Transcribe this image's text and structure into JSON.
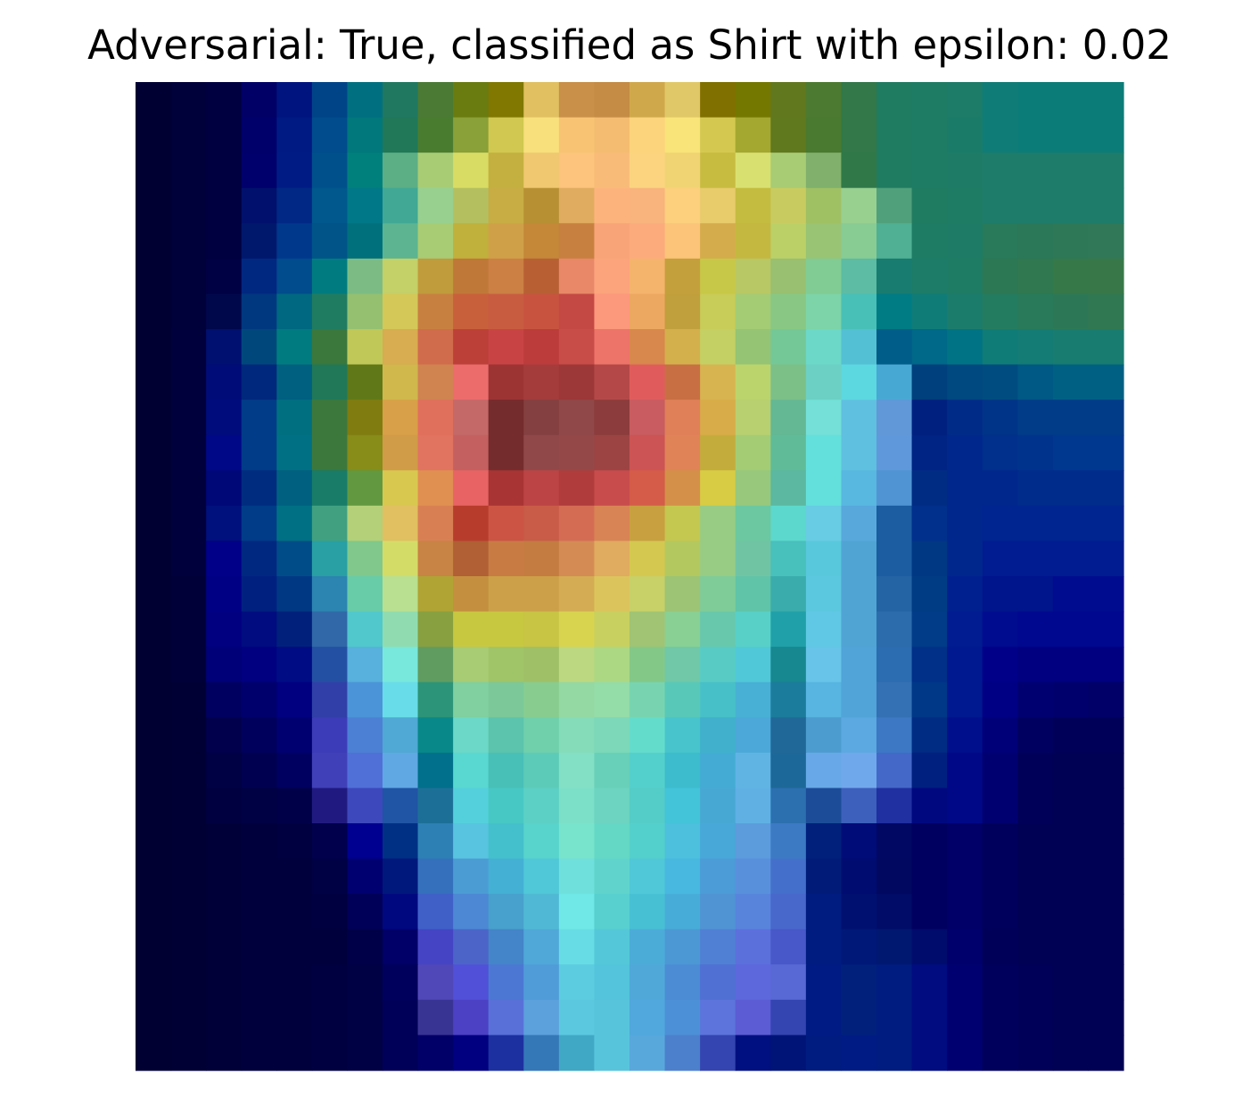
{
  "chart_data": {
    "type": "heatmap",
    "title": "Adversarial: True, classified as Shirt with epsilon: 0.02",
    "rows": 28,
    "cols": 28,
    "axes_visible": false,
    "colors": [
      [
        "#000033",
        "#00003a",
        "#000040",
        "#000066",
        "#001480",
        "#004488",
        "#007080",
        "#207860",
        "#4a7a34",
        "#6a7c10",
        "#807800",
        "#e0c060",
        "#c89048",
        "#c48c44",
        "#d0a84c",
        "#e0c868",
        "#807000",
        "#747800",
        "#62781e",
        "#4c7a30",
        "#327848",
        "#207c60",
        "#1e7c64",
        "#1c7c68",
        "#107c78",
        "#0c7c78",
        "#0c7c78",
        "#0c7c78"
      ],
      [
        "#000033",
        "#00003a",
        "#000040",
        "#00006a",
        "#001a84",
        "#004c8c",
        "#00787c",
        "#207858",
        "#4a7c30",
        "#8aa038",
        "#d0c850",
        "#f8e07c",
        "#f8c474",
        "#f4bc70",
        "#fcd47c",
        "#f8e478",
        "#d4c850",
        "#a4a830",
        "#60781e",
        "#4a7a30",
        "#327848",
        "#207c60",
        "#1e7c64",
        "#1a7c68",
        "#107c78",
        "#0c7c78",
        "#0c7c78",
        "#0c7c78"
      ],
      [
        "#000033",
        "#00003a",
        "#000040",
        "#00006c",
        "#001c84",
        "#00508c",
        "#00807c",
        "#5cae84",
        "#a8cc74",
        "#d8dc64",
        "#c4b040",
        "#f0c870",
        "#fcc47c",
        "#f8bc78",
        "#fcd480",
        "#f0d474",
        "#c8bc40",
        "#d8e070",
        "#a8cc74",
        "#80b06c",
        "#307848",
        "#207c60",
        "#1e7c64",
        "#1e7c66",
        "#1e7c6a",
        "#1e7c6a",
        "#1e7c6a",
        "#1e7c6a"
      ],
      [
        "#000033",
        "#00003a",
        "#000040",
        "#00106c",
        "#002884",
        "#00588c",
        "#007888",
        "#40a894",
        "#98d090",
        "#b4c060",
        "#c8ac44",
        "#b89034",
        "#e0ac60",
        "#fcb47c",
        "#f8b47c",
        "#fcd07c",
        "#e8cc6c",
        "#c4bc40",
        "#c8cc60",
        "#a0c064",
        "#98d090",
        "#50a07c",
        "#207c60",
        "#1e7c64",
        "#1e7c6a",
        "#1e7c6a",
        "#1e7c6a",
        "#1e7c6a"
      ],
      [
        "#000033",
        "#00003a",
        "#000040",
        "#00186c",
        "#00388c",
        "#005488",
        "#00707c",
        "#5cb490",
        "#a8cc74",
        "#c0b03c",
        "#d0a048",
        "#c48838",
        "#c88040",
        "#f8a478",
        "#fcac7c",
        "#fcc478",
        "#d4ac4c",
        "#c4b840",
        "#bcd068",
        "#98c474",
        "#88cc94",
        "#50b094",
        "#1e7c64",
        "#1e7c66",
        "#287a5a",
        "#2a7858",
        "#2e7858",
        "#307858"
      ],
      [
        "#000033",
        "#00003a",
        "#000044",
        "#002880",
        "#004c8c",
        "#007c80",
        "#7cbc84",
        "#c4d068",
        "#c09c3c",
        "#c07838",
        "#cc8044",
        "#b86034",
        "#e88868",
        "#fca47c",
        "#f4b46c",
        "#c4a03c",
        "#c8c848",
        "#b8c864",
        "#98c070",
        "#80cc94",
        "#5cbca4",
        "#187c70",
        "#1c7c68",
        "#1e7c64",
        "#2c7854",
        "#307850",
        "#367848",
        "#387848"
      ],
      [
        "#000033",
        "#00003a",
        "#00084c",
        "#003880",
        "#006880",
        "#207c60",
        "#94c070",
        "#d4c858",
        "#c88040",
        "#c8603c",
        "#c85c40",
        "#c85440",
        "#c44844",
        "#fc987c",
        "#eca860",
        "#c0a03c",
        "#c8cc58",
        "#a4cc74",
        "#88c884",
        "#7cd4a8",
        "#48c0b8",
        "#007c84",
        "#107c78",
        "#1c7c6c",
        "#247c60",
        "#287a5a",
        "#2c7856",
        "#307852"
      ],
      [
        "#000033",
        "#00003c",
        "#001070",
        "#00487c",
        "#007c80",
        "#3a783c",
        "#c0c858",
        "#d8ac50",
        "#d06c4c",
        "#bc4038",
        "#c84444",
        "#bc3c3c",
        "#c84c48",
        "#ec7468",
        "#d8884c",
        "#d4b04c",
        "#c4d064",
        "#94c474",
        "#74c898",
        "#6cd8c8",
        "#54c0d4",
        "#005c88",
        "#006888",
        "#007484",
        "#107c78",
        "#147c74",
        "#187c70",
        "#187c70"
      ],
      [
        "#000033",
        "#00003c",
        "#000c78",
        "#00287c",
        "#006080",
        "#207858",
        "#607818",
        "#d0b84c",
        "#d08450",
        "#ec6c6c",
        "#9c3434",
        "#a43c3c",
        "#9c3838",
        "#b44848",
        "#e05c5c",
        "#c87044",
        "#d8b450",
        "#bcd46c",
        "#7cc088",
        "#6cd0c4",
        "#5cd8e0",
        "#48a8d4",
        "#00407c",
        "#004880",
        "#004c80",
        "#005884",
        "#006084",
        "#006084"
      ],
      [
        "#000033",
        "#00003c",
        "#000c7c",
        "#003c88",
        "#007080",
        "#3c783c",
        "#807c10",
        "#d8a048",
        "#e0705c",
        "#c46868",
        "#742c2c",
        "#844040",
        "#904848",
        "#8c3c3c",
        "#c85c60",
        "#e08058",
        "#d8ac48",
        "#b8d070",
        "#64b894",
        "#74e0d8",
        "#60c0e0",
        "#6098d8",
        "#002080",
        "#002c88",
        "#003488",
        "#003c88",
        "#003c88",
        "#003c88"
      ],
      [
        "#000033",
        "#00003c",
        "#000888",
        "#003c88",
        "#007084",
        "#3c783c",
        "#888c18",
        "#d09c48",
        "#e07460",
        "#c46060",
        "#742c2c",
        "#904848",
        "#944848",
        "#9c4444",
        "#cc5454",
        "#e08458",
        "#c4ac3c",
        "#a4cc74",
        "#60bc98",
        "#64e0dc",
        "#60c0e0",
        "#6098dc",
        "#002484",
        "#00288c",
        "#00308c",
        "#00348c",
        "#003890",
        "#003890"
      ],
      [
        "#000033",
        "#00003c",
        "#000878",
        "#002c80",
        "#006080",
        "#187c68",
        "#629840",
        "#d8c850",
        "#e09050",
        "#e86464",
        "#a83434",
        "#bc4444",
        "#b03c3c",
        "#c84c4c",
        "#d45c48",
        "#d49048",
        "#d8cc44",
        "#98c87c",
        "#5cb8a0",
        "#64e0dc",
        "#58b8e0",
        "#5094d4",
        "#002c84",
        "#00288c",
        "#00288c",
        "#002c8c",
        "#002c8c",
        "#002c8c"
      ],
      [
        "#000033",
        "#00003c",
        "#00107c",
        "#003c88",
        "#007084",
        "#40a080",
        "#b4d078",
        "#e0c060",
        "#d88054",
        "#b83c2c",
        "#cc5444",
        "#c85c48",
        "#d46c54",
        "#d88454",
        "#c8a040",
        "#c4c850",
        "#98cc84",
        "#6cc8a0",
        "#5cd8cc",
        "#68cce4",
        "#58a8dc",
        "#1c5ca0",
        "#00308c",
        "#00288c",
        "#002490",
        "#002490",
        "#002490",
        "#002490"
      ],
      [
        "#000033",
        "#00003c",
        "#000088",
        "#002880",
        "#004c88",
        "#28a0a4",
        "#80c88c",
        "#d4dc68",
        "#c88444",
        "#b06034",
        "#c87c44",
        "#c47c40",
        "#d48c54",
        "#e0ac60",
        "#d4c850",
        "#b4c860",
        "#98cc84",
        "#70c4a4",
        "#48c0bc",
        "#58c8dc",
        "#50a4d4",
        "#1c5ca0",
        "#003884",
        "#00288c",
        "#001c90",
        "#001c90",
        "#001c90",
        "#001c90"
      ],
      [
        "#000033",
        "#000038",
        "#000084",
        "#002080",
        "#003884",
        "#2c84b0",
        "#68cca8",
        "#b8e090",
        "#b0a434",
        "#c49040",
        "#cca048",
        "#cca048",
        "#d4ac54",
        "#dcc45c",
        "#c8d068",
        "#9cc474",
        "#80cc98",
        "#60c4a8",
        "#3aacac",
        "#5cc8e0",
        "#50a4d4",
        "#2464a4",
        "#003c84",
        "#002090",
        "#00148c",
        "#00148c",
        "#000c90",
        "#000c90"
      ],
      [
        "#000033",
        "#000038",
        "#000080",
        "#000c80",
        "#00207c",
        "#3068a8",
        "#50c8cc",
        "#90dcb0",
        "#88a040",
        "#c8c840",
        "#c8c840",
        "#c8c444",
        "#d8d450",
        "#c8d060",
        "#a0c474",
        "#88d094",
        "#68c8ac",
        "#58d0c8",
        "#20a0a8",
        "#60c8e4",
        "#50a4d4",
        "#2c6cac",
        "#003c88",
        "#001c90",
        "#000c90",
        "#000890",
        "#000890",
        "#000890"
      ],
      [
        "#000033",
        "#000038",
        "#000078",
        "#000080",
        "#000c84",
        "#2450a4",
        "#58b0dc",
        "#78e8dc",
        "#609c60",
        "#a8cc74",
        "#a0c468",
        "#a0c068",
        "#bcd880",
        "#acd884",
        "#84c888",
        "#70c8a8",
        "#58ccc4",
        "#50c8d8",
        "#188890",
        "#68c4e8",
        "#50a4d8",
        "#2c6cb0",
        "#003088",
        "#001890",
        "#000088",
        "#000080",
        "#000080",
        "#000080"
      ],
      [
        "#000033",
        "#000034",
        "#000060",
        "#00006c",
        "#000080",
        "#3040a8",
        "#4c94d8",
        "#68dce8",
        "#2c9478",
        "#80d0a0",
        "#7cc898",
        "#88cc90",
        "#94d8a4",
        "#94dca8",
        "#78d4b0",
        "#58c8b8",
        "#48c0c8",
        "#48b0d4",
        "#1c7c9c",
        "#58b4e0",
        "#50a4d8",
        "#3470b4",
        "#003888",
        "#001890",
        "#000084",
        "#000070",
        "#00006c",
        "#000068"
      ],
      [
        "#000033",
        "#000034",
        "#00004c",
        "#00005c",
        "#000070",
        "#3c3cb8",
        "#4c80d4",
        "#50a8d4",
        "#088888",
        "#6cd8c8",
        "#5cc4ac",
        "#70d0ac",
        "#84dcb8",
        "#7cd8b8",
        "#64dccc",
        "#48c4cc",
        "#40b0cc",
        "#4ca8d8",
        "#206898",
        "#4c9cd0",
        "#5ca8e0",
        "#3c78c4",
        "#002c84",
        "#00108c",
        "#000078",
        "#000060",
        "#000058",
        "#000058"
      ],
      [
        "#000033",
        "#000034",
        "#000044",
        "#000050",
        "#000060",
        "#4040b8",
        "#5070d8",
        "#60a8e4",
        "#00708c",
        "#58d8d0",
        "#48c0b8",
        "#5cccb8",
        "#84e0c4",
        "#68d0b8",
        "#54d0cc",
        "#3cbccc",
        "#44acd4",
        "#60b4e4",
        "#1c6898",
        "#68a8e8",
        "#70a8ec",
        "#4468c8",
        "#002080",
        "#000888",
        "#000070",
        "#000058",
        "#000054",
        "#000054"
      ],
      [
        "#000033",
        "#000034",
        "#000040",
        "#000044",
        "#000048",
        "#201a80",
        "#3c48bc",
        "#2054a4",
        "#1c7098",
        "#54d0dc",
        "#48c8c4",
        "#5cd0c4",
        "#7ce0c8",
        "#6cd4c0",
        "#54ccc8",
        "#44c4d8",
        "#48a8d4",
        "#60b0e4",
        "#2c70b0",
        "#1c4c98",
        "#3c60bc",
        "#2030a0",
        "#000880",
        "#000888",
        "#000070",
        "#000058",
        "#000054",
        "#000054"
      ],
      [
        "#000033",
        "#000034",
        "#000038",
        "#00003c",
        "#000040",
        "#00004c",
        "#000090",
        "#003084",
        "#2c80b4",
        "#58c4e0",
        "#44c0cc",
        "#58d4cc",
        "#78e4cc",
        "#64d8c4",
        "#54d0cc",
        "#4cc0dc",
        "#48a8d8",
        "#5c9cdc",
        "#3c7ac4",
        "#00207c",
        "#000c78",
        "#000864",
        "#000060",
        "#000068",
        "#00005c",
        "#000054",
        "#000054",
        "#000054"
      ],
      [
        "#000033",
        "#000034",
        "#000038",
        "#00003c",
        "#00003c",
        "#000044",
        "#000070",
        "#00187c",
        "#3470bc",
        "#4c9cd4",
        "#44b0d4",
        "#50c8d8",
        "#70e0dc",
        "#60d4cc",
        "#50c8d8",
        "#48b8e0",
        "#4c9cd8",
        "#5890dc",
        "#4470cc",
        "#001c78",
        "#000c70",
        "#000860",
        "#000060",
        "#000068",
        "#00005c",
        "#000054",
        "#000054",
        "#000054"
      ],
      [
        "#000033",
        "#000034",
        "#000038",
        "#00003c",
        "#00003c",
        "#000040",
        "#000058",
        "#000880",
        "#4060c8",
        "#4c88d4",
        "#48a0cc",
        "#50b8d4",
        "#70e8e8",
        "#58d0d0",
        "#48c0d4",
        "#48acd8",
        "#5094d4",
        "#5884dc",
        "#4868cc",
        "#001c80",
        "#001070",
        "#000c68",
        "#000060",
        "#000068",
        "#00005c",
        "#000054",
        "#000054",
        "#000054"
      ],
      [
        "#000033",
        "#000034",
        "#000038",
        "#00003c",
        "#00003c",
        "#00003c",
        "#000048",
        "#000068",
        "#4444c4",
        "#4c64c8",
        "#4484c8",
        "#50a8d8",
        "#68dce4",
        "#54c8d8",
        "#4cacd8",
        "#4c98d4",
        "#5080d4",
        "#5c70dc",
        "#4858c8",
        "#001c80",
        "#001878",
        "#001870",
        "#000c6c",
        "#00006c",
        "#000058",
        "#000054",
        "#000054",
        "#000054"
      ],
      [
        "#000033",
        "#000034",
        "#000038",
        "#00003c",
        "#00003c",
        "#000040",
        "#000044",
        "#00005c",
        "#5048b8",
        "#5050d8",
        "#4c78d4",
        "#509cd8",
        "#5ccce0",
        "#54c4dc",
        "#50a8d8",
        "#4c8cd4",
        "#5070d4",
        "#5c68dc",
        "#5868d4",
        "#001c84",
        "#00207c",
        "#001c80",
        "#000c80",
        "#000070",
        "#00005c",
        "#000058",
        "#000054",
        "#000054"
      ],
      [
        "#000033",
        "#000034",
        "#000038",
        "#00003c",
        "#00003c",
        "#000040",
        "#000044",
        "#000058",
        "#383494",
        "#4c40c4",
        "#5870d8",
        "#5ca0dc",
        "#5cc8e0",
        "#58c4dc",
        "#50a8dc",
        "#4c90d8",
        "#5c74dc",
        "#5c5cd4",
        "#3444b0",
        "#001c84",
        "#00207c",
        "#001c80",
        "#000c80",
        "#000070",
        "#00005c",
        "#000058",
        "#000054",
        "#000054"
      ],
      [
        "#000033",
        "#000034",
        "#000038",
        "#00003c",
        "#00003c",
        "#000040",
        "#000044",
        "#000058",
        "#000068",
        "#000080",
        "#1c30a0",
        "#3478b8",
        "#40a8c4",
        "#58c4dc",
        "#58a8dc",
        "#4c80cc",
        "#3444b0",
        "#001080",
        "#001478",
        "#001c80",
        "#001c84",
        "#001c80",
        "#000c80",
        "#000070",
        "#00005c",
        "#000058",
        "#000054",
        "#000054"
      ]
    ]
  }
}
